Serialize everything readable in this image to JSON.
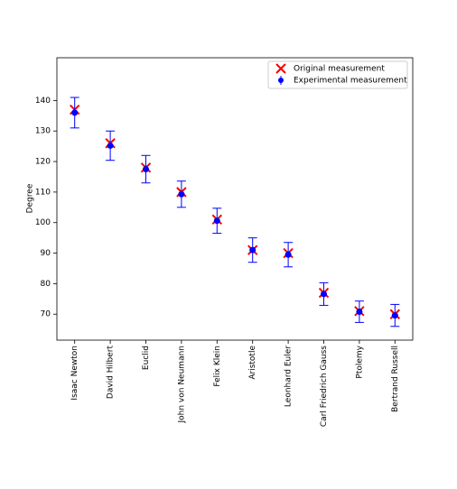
{
  "chart_data": {
    "type": "errorbar",
    "y_label": "Degree",
    "categories": [
      "Isaac Newton",
      "David Hilbert",
      "Euclid",
      "John von Neumann",
      "Felix Klein",
      "Aristotle",
      "Leonhard Euler",
      "Carl Friedrich Gauss",
      "Ptolemy",
      "Bertrand Russell"
    ],
    "series": [
      {
        "name": "Original measurement",
        "color": "#ff0000",
        "marker": "x",
        "values": [
          137,
          126,
          118,
          110,
          101,
          91,
          90,
          77,
          71,
          70
        ]
      },
      {
        "name": "Experimental measurement",
        "color": "#0000ff",
        "marker": "o",
        "values": [
          136,
          125.2,
          117.5,
          109.3,
          100.6,
          91,
          89.5,
          76.6,
          70.8,
          69.6
        ],
        "errors": [
          5,
          4.8,
          4.5,
          4.3,
          4.1,
          4,
          4,
          3.7,
          3.5,
          3.6
        ]
      }
    ],
    "ylim": [
      61.5,
      154
    ],
    "yticks": [
      70,
      80,
      90,
      100,
      110,
      120,
      130,
      140
    ],
    "legend": "upper right"
  }
}
